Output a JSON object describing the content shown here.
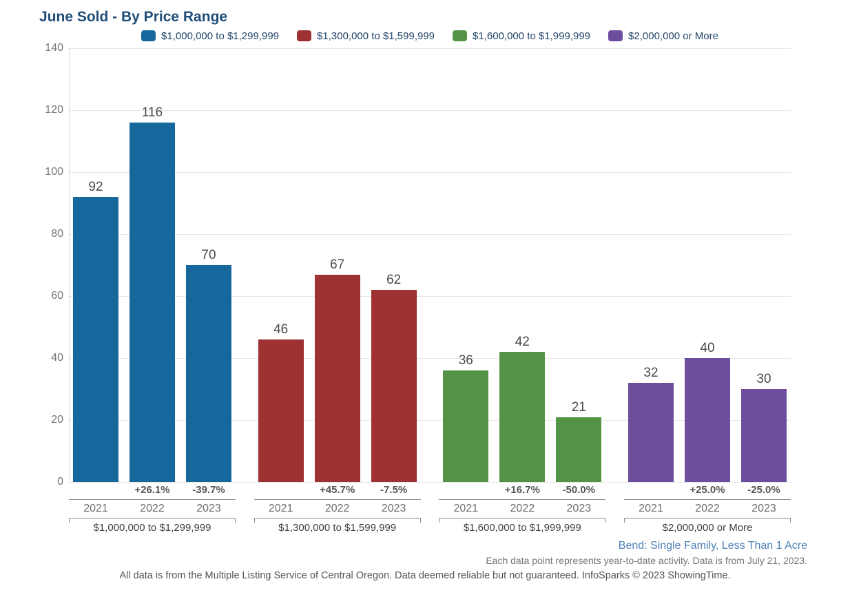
{
  "title": "June Sold - By Price Range",
  "legend": [
    {
      "label": "$1,000,000 to $1,299,999",
      "color": "#16689C"
    },
    {
      "label": "$1,300,000 to $1,599,999",
      "color": "#9E3132"
    },
    {
      "label": "$1,600,000 to $1,999,999",
      "color": "#549346"
    },
    {
      "label": "$2,000,000 or More",
      "color": "#6C4E9D"
    }
  ],
  "chart_data": {
    "type": "bar",
    "title": "June Sold - By Price Range",
    "xlabel": "",
    "ylabel": "",
    "ylim": [
      0,
      140
    ],
    "yticks": [
      0,
      20,
      40,
      60,
      80,
      100,
      120,
      140
    ],
    "grid": true,
    "legend_position": "top",
    "categories": [
      "2021",
      "2022",
      "2023"
    ],
    "groups": [
      {
        "name": "$1,000,000 to $1,299,999",
        "color": "#16689C",
        "values": [
          92,
          116,
          70
        ],
        "pct_change": [
          "",
          "+26.1%",
          "-39.7%"
        ]
      },
      {
        "name": "$1,300,000 to $1,599,999",
        "color": "#9E3132",
        "values": [
          46,
          67,
          62
        ],
        "pct_change": [
          "",
          "+45.7%",
          "-7.5%"
        ]
      },
      {
        "name": "$1,600,000 to $1,999,999",
        "color": "#549346",
        "values": [
          36,
          42,
          21
        ],
        "pct_change": [
          "",
          "+16.7%",
          "-50.0%"
        ]
      },
      {
        "name": "$2,000,000 or More",
        "color": "#6C4E9D",
        "values": [
          32,
          40,
          30
        ],
        "pct_change": [
          "",
          "+25.0%",
          "-25.0%"
        ]
      }
    ]
  },
  "footer": {
    "location": "Bend: Single Family, Less Than 1 Acre",
    "note": "Each data point represents year-to-date activity. Data is from July 21, 2023.",
    "disclaimer": "All data is from the Multiple Listing Service of Central Oregon. Data deemed reliable but not guaranteed. InfoSparks © 2023 ShowingTime."
  }
}
